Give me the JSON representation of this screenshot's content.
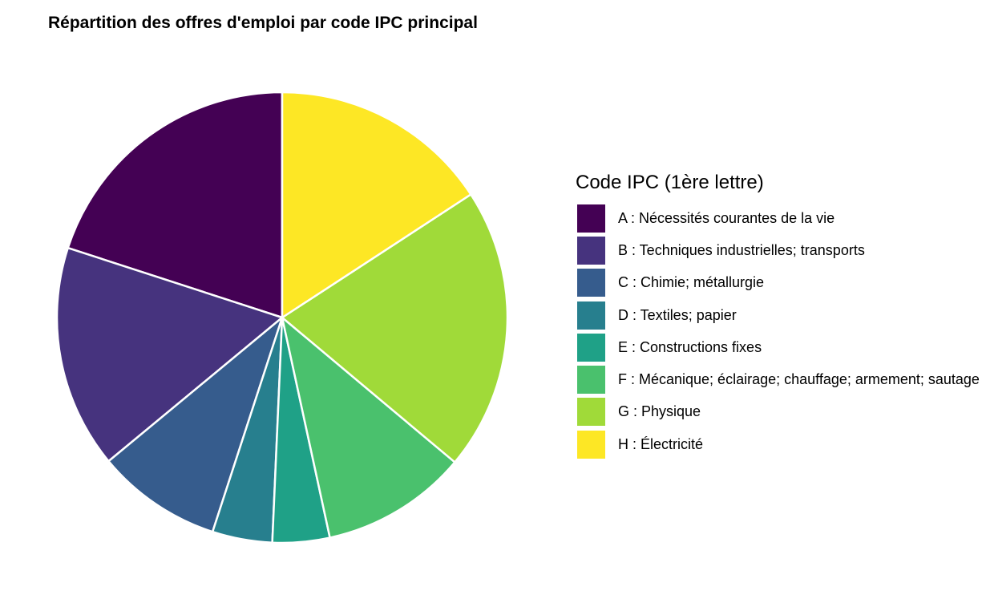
{
  "chart_data": {
    "type": "pie",
    "title": "Répartition des offres d'emploi par code IPC principal",
    "legend_title": "Code IPC (1ère lettre)",
    "legend_position": "right",
    "start": "top",
    "direction": "counterclockwise",
    "categories": [
      "A : Nécessités courantes de la vie",
      "B : Techniques industrielles; transports",
      "C : Chimie; métallurgie",
      "D : Textiles; papier",
      "E : Constructions fixes",
      "F : Mécanique; éclairage; chauffage; armement; sautage",
      "G : Physique",
      "H : Électricité"
    ],
    "values": [
      20.0,
      16.0,
      9.0,
      4.3,
      4.1,
      10.5,
      20.3,
      15.8
    ],
    "unit": "percent (estimated)",
    "colors": [
      "#440154",
      "#46337e",
      "#365c8d",
      "#277f8e",
      "#1fa187",
      "#4ac16d",
      "#a0da39",
      "#fde725"
    ]
  }
}
